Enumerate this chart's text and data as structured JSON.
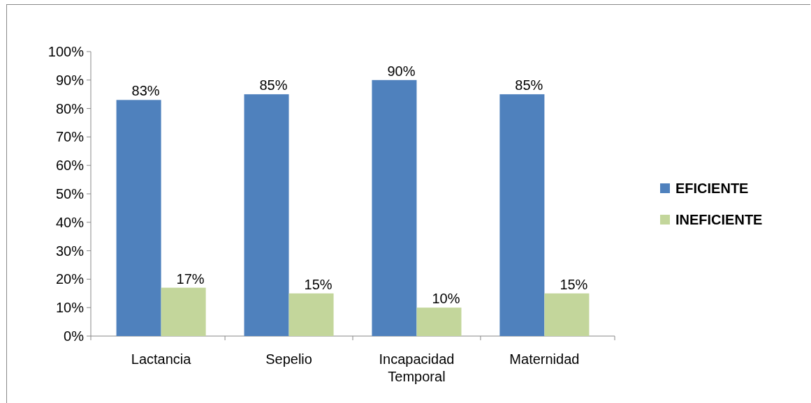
{
  "chart_data": {
    "type": "bar",
    "categories": [
      "Lactancia",
      "Sepelio",
      "Incapacidad Temporal",
      "Maternidad"
    ],
    "series": [
      {
        "name": "EFICIENTE",
        "color": "#4f81bd",
        "values": [
          83,
          85,
          90,
          85
        ],
        "value_labels": [
          "83%",
          "85%",
          "90%",
          "85%"
        ]
      },
      {
        "name": "INEFICIENTE",
        "color": "#c3d69b",
        "values": [
          17,
          15,
          10,
          15
        ],
        "value_labels": [
          "17%",
          "15%",
          "10%",
          "15%"
        ]
      }
    ],
    "ylim": [
      0,
      100
    ],
    "yticks": [
      {
        "value": 0,
        "label": "0%"
      },
      {
        "value": 10,
        "label": "10%"
      },
      {
        "value": 20,
        "label": "20%"
      },
      {
        "value": 30,
        "label": "30%"
      },
      {
        "value": 40,
        "label": "40%"
      },
      {
        "value": 50,
        "label": "50%"
      },
      {
        "value": 60,
        "label": "60%"
      },
      {
        "value": 70,
        "label": "70%"
      },
      {
        "value": 80,
        "label": "80%"
      },
      {
        "value": 90,
        "label": "90%"
      },
      {
        "value": 100,
        "label": "100%"
      }
    ],
    "grid": false,
    "legend": "right"
  }
}
